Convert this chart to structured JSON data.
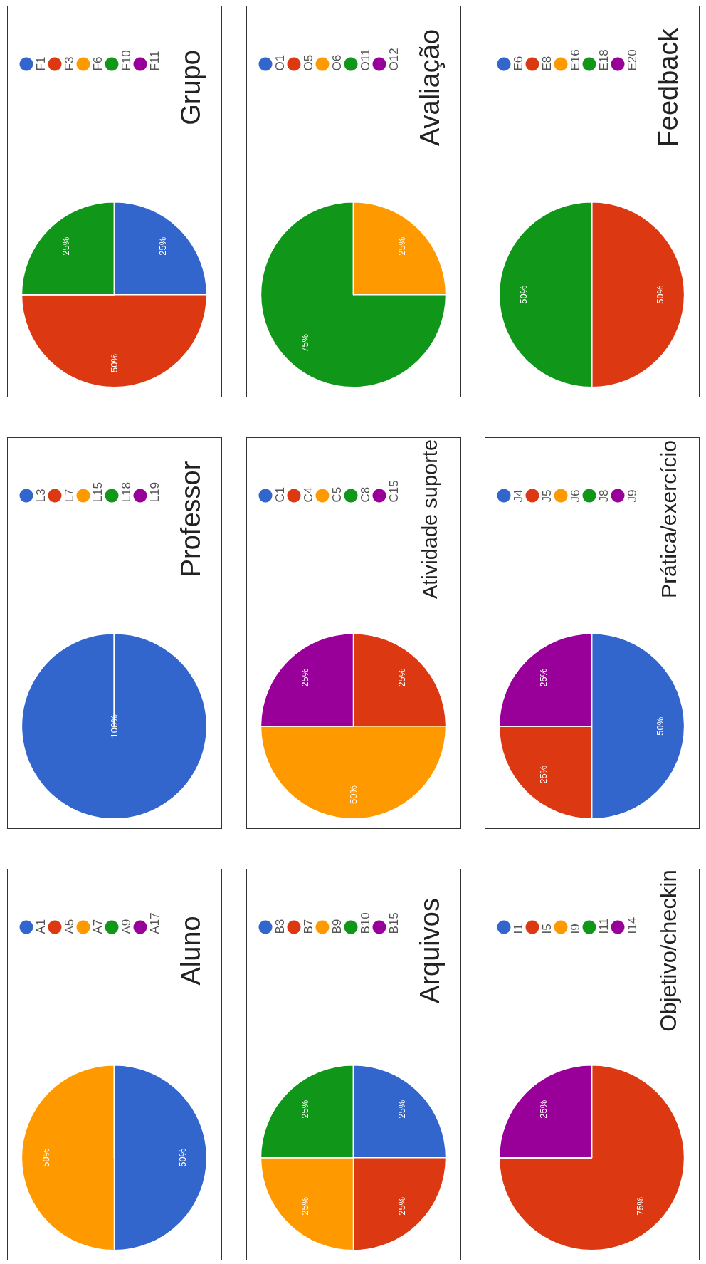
{
  "chart_data": [
    {
      "type": "pie",
      "title": "Grupo",
      "categories": [
        "F1",
        "F3",
        "F6",
        "F10",
        "F11"
      ],
      "values": [
        25,
        50,
        0,
        25,
        0
      ],
      "colors": [
        "#3366cc",
        "#dc3912",
        "#ff9900",
        "#109618",
        "#990099"
      ],
      "value_labels": [
        "25%",
        "50%",
        null,
        "25%",
        null
      ],
      "legend": "top left"
    },
    {
      "type": "pie",
      "title": "Avaliação",
      "categories": [
        "O1",
        "O5",
        "O6",
        "O11",
        "O12"
      ],
      "values": [
        0,
        0,
        25,
        75,
        0
      ],
      "colors": [
        "#3366cc",
        "#dc3912",
        "#ff9900",
        "#109618",
        "#990099"
      ],
      "value_labels": [
        null,
        null,
        "25%",
        "75%",
        null
      ],
      "legend": "top left"
    },
    {
      "type": "pie",
      "title": "Feedback",
      "categories": [
        "E6",
        "E8",
        "E16",
        "E18",
        "E20"
      ],
      "values": [
        0,
        50,
        0,
        50,
        0
      ],
      "colors": [
        "#3366cc",
        "#dc3912",
        "#ff9900",
        "#109618",
        "#990099"
      ],
      "value_labels": [
        null,
        "50%",
        null,
        "50%",
        null
      ],
      "legend": "top left"
    },
    {
      "type": "pie",
      "title": "Professor",
      "categories": [
        "L3",
        "L7",
        "L15",
        "L18",
        "L19"
      ],
      "values": [
        100,
        0,
        0,
        0,
        0
      ],
      "colors": [
        "#3366cc",
        "#dc3912",
        "#ff9900",
        "#109618",
        "#990099"
      ],
      "value_labels": [
        "100%",
        null,
        null,
        null,
        null
      ],
      "legend": "top left"
    },
    {
      "type": "pie",
      "title": "Atividade suporte",
      "categories": [
        "C1",
        "C4",
        "C5",
        "C8",
        "C15"
      ],
      "values": [
        0,
        25,
        50,
        0,
        25
      ],
      "colors": [
        "#3366cc",
        "#dc3912",
        "#ff9900",
        "#109618",
        "#990099"
      ],
      "value_labels": [
        null,
        "25%",
        "50%",
        null,
        "25%"
      ],
      "legend": "top left"
    },
    {
      "type": "pie",
      "title": "Prática/exercício",
      "categories": [
        "J4",
        "J5",
        "J6",
        "J8",
        "J9"
      ],
      "values": [
        50,
        25,
        0,
        0,
        25
      ],
      "colors": [
        "#3366cc",
        "#dc3912",
        "#ff9900",
        "#109618",
        "#990099"
      ],
      "value_labels": [
        "50%",
        "25%",
        null,
        null,
        "25%"
      ],
      "legend": "top left"
    },
    {
      "type": "pie",
      "title": "Aluno",
      "categories": [
        "A1",
        "A5",
        "A7",
        "A9",
        "A17"
      ],
      "values": [
        50,
        0,
        50,
        0,
        0
      ],
      "colors": [
        "#3366cc",
        "#dc3912",
        "#ff9900",
        "#109618",
        "#990099"
      ],
      "value_labels": [
        "50%",
        null,
        "50%",
        null,
        null
      ],
      "legend": "top left"
    },
    {
      "type": "pie",
      "title": "Arquivos",
      "categories": [
        "B3",
        "B7",
        "B9",
        "B10",
        "B15"
      ],
      "values": [
        25,
        25,
        25,
        25,
        0
      ],
      "colors": [
        "#3366cc",
        "#dc3912",
        "#ff9900",
        "#109618",
        "#990099"
      ],
      "value_labels": [
        "25%",
        "25%",
        "25%",
        "25%",
        null
      ],
      "legend": "top left"
    },
    {
      "type": "pie",
      "title": "Objetivo/checkin",
      "categories": [
        "I1",
        "I5",
        "I9",
        "I11",
        "I14"
      ],
      "values": [
        0,
        75,
        0,
        0,
        25
      ],
      "colors": [
        "#3366cc",
        "#dc3912",
        "#ff9900",
        "#109618",
        "#990099"
      ],
      "value_labels": [
        null,
        "75%",
        null,
        null,
        "25%"
      ],
      "legend": "top left"
    }
  ]
}
